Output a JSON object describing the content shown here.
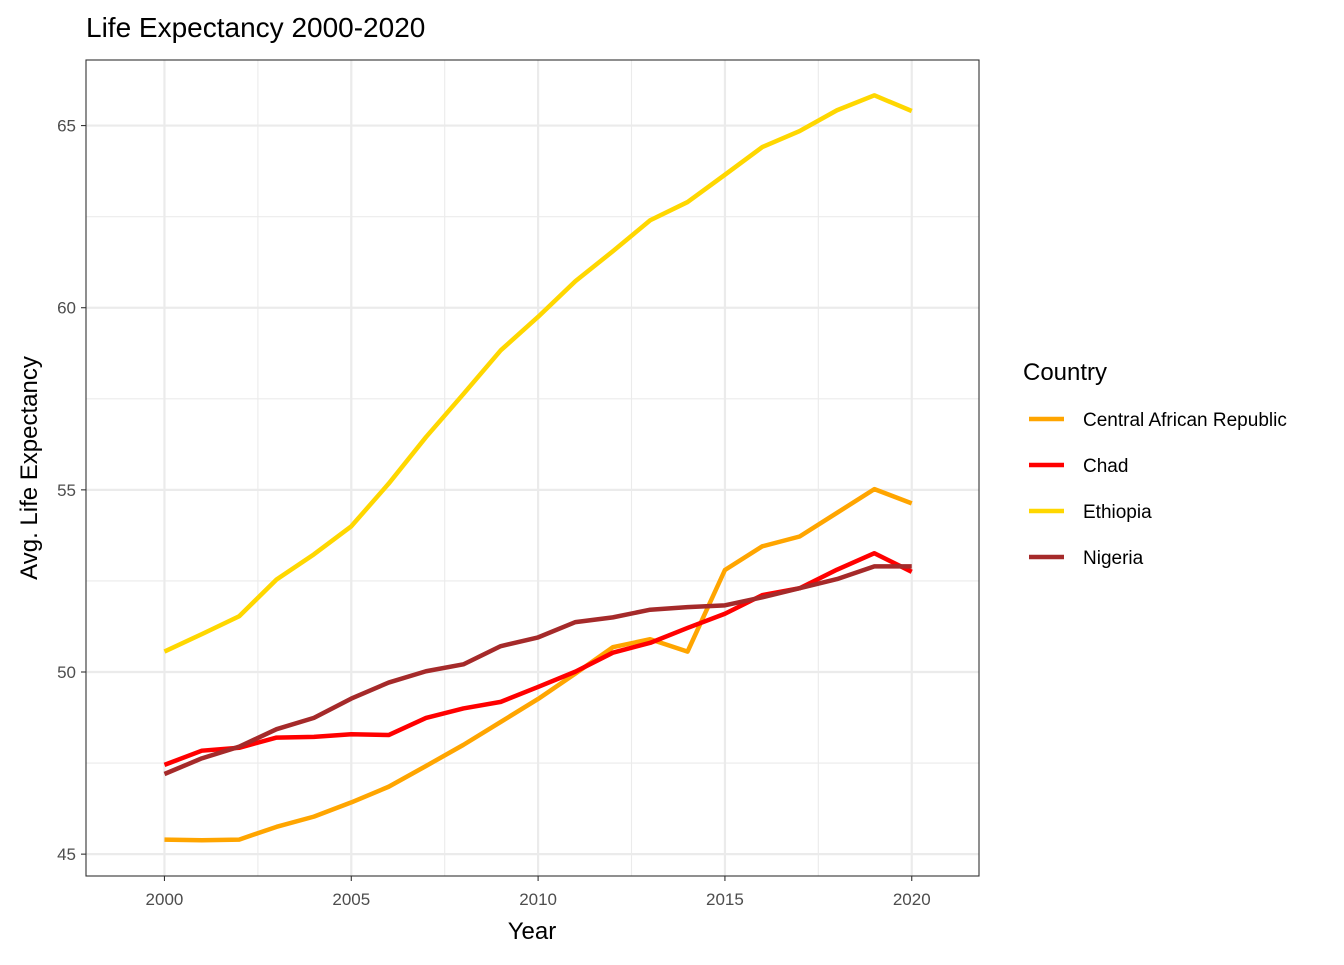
{
  "chart_data": {
    "type": "line",
    "title": "Life Expectancy 2000-2020",
    "xlabel": "Year",
    "ylabel": "Avg. Life Expectancy",
    "xlim": [
      1997.9,
      2021.8
    ],
    "ylim": [
      44.4,
      66.8
    ],
    "x_ticks": [
      2000,
      2005,
      2010,
      2015,
      2020
    ],
    "y_ticks": [
      45,
      50,
      55,
      60,
      65
    ],
    "grid": true,
    "legend": {
      "title": "Country",
      "position": "right"
    },
    "x": [
      2000,
      2001,
      2002,
      2003,
      2004,
      2005,
      2006,
      2007,
      2008,
      2009,
      2010,
      2011,
      2012,
      2013,
      2014,
      2015,
      2016,
      2017,
      2018,
      2019,
      2020
    ],
    "series": [
      {
        "name": "Central African Republic",
        "color": "#FFA500",
        "values": [
          45.4,
          45.38,
          45.4,
          45.75,
          46.03,
          46.42,
          46.85,
          47.42,
          48.0,
          48.63,
          49.26,
          49.96,
          50.68,
          50.9,
          50.56,
          52.8,
          53.45,
          53.72,
          54.37,
          55.02,
          54.63
        ]
      },
      {
        "name": "Chad",
        "color": "#FF0000",
        "values": [
          47.45,
          47.84,
          47.92,
          48.2,
          48.22,
          48.29,
          48.27,
          48.74,
          49.0,
          49.18,
          49.59,
          50.01,
          50.53,
          50.8,
          51.21,
          51.6,
          52.11,
          52.3,
          52.81,
          53.26,
          52.75
        ]
      },
      {
        "name": "Ethiopia",
        "color": "#FFD700",
        "values": [
          50.56,
          51.04,
          51.53,
          52.54,
          53.23,
          54.0,
          55.17,
          56.45,
          57.63,
          58.83,
          59.75,
          60.73,
          61.55,
          62.4,
          62.9,
          63.65,
          64.41,
          64.85,
          65.42,
          65.83,
          65.4
        ]
      },
      {
        "name": "Nigeria",
        "color": "#A52A2A",
        "values": [
          47.2,
          47.63,
          47.95,
          48.43,
          48.74,
          49.27,
          49.71,
          50.02,
          50.21,
          50.71,
          50.95,
          51.37,
          51.5,
          51.71,
          51.78,
          51.83,
          52.05,
          52.3,
          52.55,
          52.9,
          52.9
        ]
      }
    ]
  }
}
